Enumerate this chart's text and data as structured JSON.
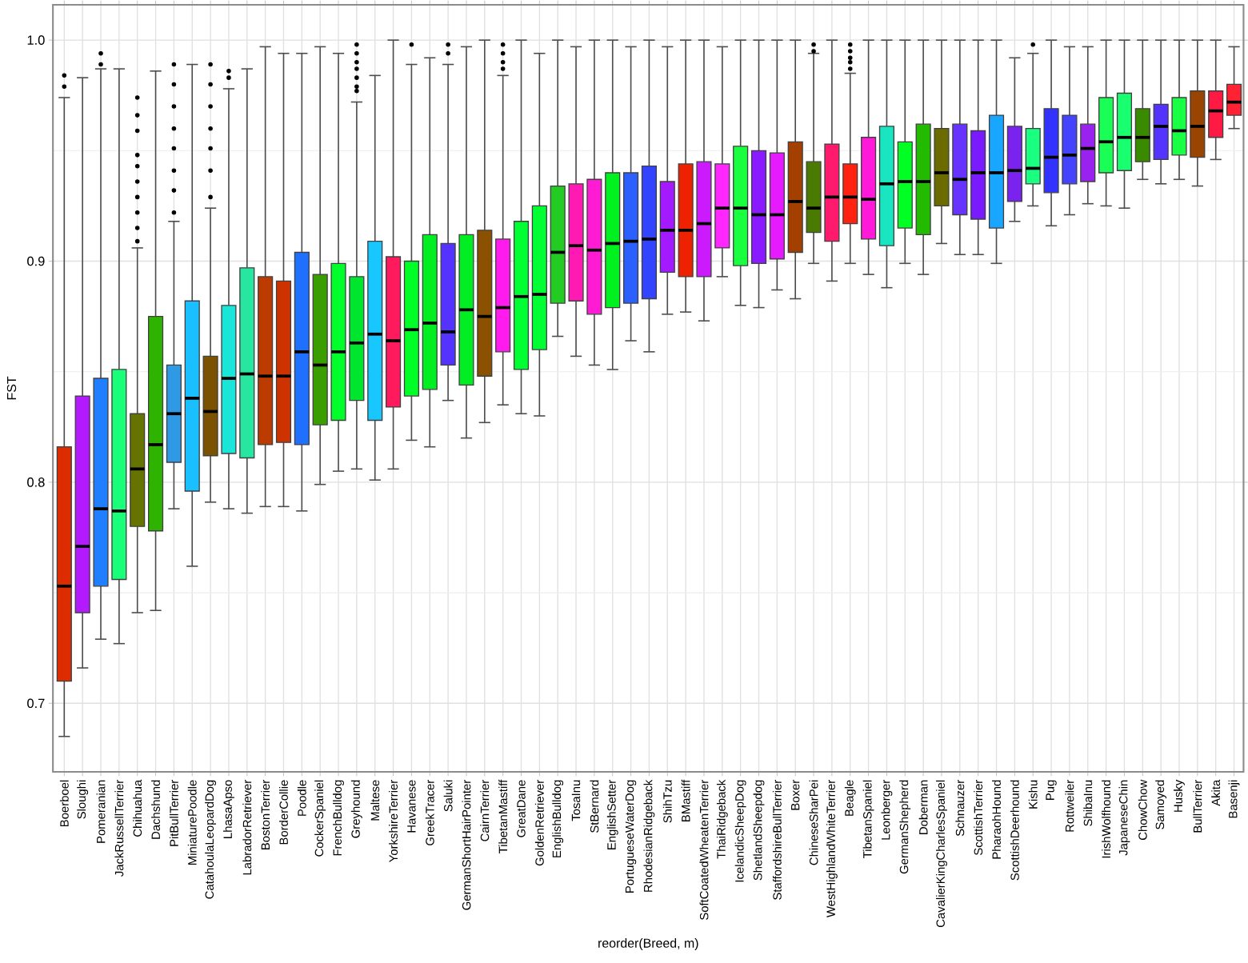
{
  "chart_data": {
    "type": "box",
    "xlabel": "reorder(Breed, m)",
    "ylabel": "FST",
    "categories": [
      "Boerboel",
      "Sloughi",
      "Pomeranian",
      "JackRussellTerrier",
      "Chihuahua",
      "Dachshund",
      "PitBullTerrier",
      "MiniaturePoodle",
      "CatahoulaLeopardDog",
      "LhasaApso",
      "LabradorRetriever",
      "BostonTerrier",
      "BorderCollie",
      "Poodle",
      "CockerSpaniel",
      "FrenchBulldog",
      "Greyhound",
      "Maltese",
      "YorkshireTerrier",
      "Havanese",
      "GreekTracer",
      "Saluki",
      "GermanShortHairPointer",
      "CairnTerrier",
      "TibetanMastiff",
      "GreatDane",
      "GoldenRetriever",
      "EnglishBulldog",
      "TosaInu",
      "StBernard",
      "EnglishSetter",
      "PortugueseWaterDog",
      "RhodesianRidgeback",
      "ShihTzu",
      "BMastiff",
      "SoftCoatedWheatenTerrier",
      "ThaiRidgeback",
      "IcelandicSheepDog",
      "ShetlandSheepdog",
      "StaffordshireBullTerrier",
      "Boxer",
      "ChineseSharPei",
      "WestHighlandWhiteTerrier",
      "Beagle",
      "TibetanSpaniel",
      "Leonberger",
      "GermanShepherd",
      "Doberman",
      "CavalierKingCharlesSpaniel",
      "Schnauzer",
      "ScottishTerrier",
      "PharaohHound",
      "ScottishDeerhound",
      "Kishu",
      "Pug",
      "Rottweiler",
      "ShibaInu",
      "IrishWolfhound",
      "JapaneseChin",
      "ChowChow",
      "Samoyed",
      "Husky",
      "BullTerrier",
      "Akita",
      "Basenji"
    ],
    "colors": [
      "#dd2c00",
      "#b31aff",
      "#1f7fff",
      "#1aff7a",
      "#667300",
      "#2db300",
      "#2e9ae6",
      "#19bfff",
      "#7a5200",
      "#19e6d9",
      "#26e6a0",
      "#bb3b00",
      "#cc3300",
      "#1f70ff",
      "#3a9e00",
      "#00ff2a",
      "#00e62e",
      "#19c7ff",
      "#ff1a5e",
      "#00ff26",
      "#00ee22",
      "#5533ff",
      "#00ee22",
      "#8a5200",
      "#ff1aee",
      "#00ff33",
      "#00ff33",
      "#22cc22",
      "#ff1ab3",
      "#ff1ad4",
      "#00f020",
      "#2b60ff",
      "#3344ff",
      "#a31aff",
      "#ee2200",
      "#cc1aff",
      "#ff26ff",
      "#19ff40",
      "#8a1aff",
      "#e61aff",
      "#a34000",
      "#4a7a00",
      "#ff1a6e",
      "#ff2211",
      "#ff1ad9",
      "#19e6c0",
      "#00ff22",
      "#22bb00",
      "#6b6b00",
      "#6633ff",
      "#7a1aff",
      "#19a6ff",
      "#7a22ee",
      "#19ff80",
      "#3333ff",
      "#4444ff",
      "#9922ee",
      "#19ff55",
      "#19ff70",
      "#3a8a00",
      "#5533ff",
      "#19ff44",
      "#994400",
      "#ff1a44",
      "#ff2233"
    ],
    "boxes": [
      {
        "low": 0.685,
        "q1": 0.71,
        "median": 0.753,
        "q3": 0.816,
        "high": 0.974,
        "outliers": [
          0.984,
          0.979
        ]
      },
      {
        "low": 0.716,
        "q1": 0.741,
        "median": 0.771,
        "q3": 0.839,
        "high": 0.983
      },
      {
        "low": 0.729,
        "q1": 0.753,
        "median": 0.788,
        "q3": 0.847,
        "high": 0.987,
        "outliers": [
          0.994,
          0.989
        ]
      },
      {
        "low": 0.727,
        "q1": 0.756,
        "median": 0.787,
        "q3": 0.851,
        "high": 0.987
      },
      {
        "low": 0.741,
        "q1": 0.78,
        "median": 0.806,
        "q3": 0.831,
        "high": 0.906,
        "outliers": [
          0.974,
          0.966,
          0.959,
          0.948,
          0.943,
          0.936,
          0.929,
          0.922,
          0.915,
          0.909
        ]
      },
      {
        "low": 0.742,
        "q1": 0.778,
        "median": 0.817,
        "q3": 0.875,
        "high": 0.986
      },
      {
        "low": 0.788,
        "q1": 0.809,
        "median": 0.831,
        "q3": 0.853,
        "high": 0.918,
        "outliers": [
          0.989,
          0.98,
          0.97,
          0.96,
          0.951,
          0.941,
          0.932,
          0.922
        ]
      },
      {
        "low": 0.762,
        "q1": 0.796,
        "median": 0.838,
        "q3": 0.882,
        "high": 0.989
      },
      {
        "low": 0.791,
        "q1": 0.812,
        "median": 0.832,
        "q3": 0.857,
        "high": 0.924,
        "outliers": [
          0.989,
          0.98,
          0.97,
          0.96,
          0.951,
          0.941,
          0.929
        ]
      },
      {
        "low": 0.788,
        "q1": 0.813,
        "median": 0.847,
        "q3": 0.88,
        "high": 0.978,
        "outliers": [
          0.986,
          0.983
        ]
      },
      {
        "low": 0.786,
        "q1": 0.811,
        "median": 0.849,
        "q3": 0.897,
        "high": 0.987
      },
      {
        "low": 0.789,
        "q1": 0.817,
        "median": 0.848,
        "q3": 0.893,
        "high": 0.997
      },
      {
        "low": 0.789,
        "q1": 0.818,
        "median": 0.848,
        "q3": 0.891,
        "high": 0.994
      },
      {
        "low": 0.787,
        "q1": 0.817,
        "median": 0.859,
        "q3": 0.904,
        "high": 0.994
      },
      {
        "low": 0.799,
        "q1": 0.826,
        "median": 0.853,
        "q3": 0.894,
        "high": 0.997
      },
      {
        "low": 0.805,
        "q1": 0.828,
        "median": 0.859,
        "q3": 0.899,
        "high": 0.994
      },
      {
        "low": 0.806,
        "q1": 0.837,
        "median": 0.863,
        "q3": 0.893,
        "high": 0.972,
        "outliers": [
          0.998,
          0.994,
          0.99,
          0.987,
          0.983,
          0.979,
          0.977
        ]
      },
      {
        "low": 0.801,
        "q1": 0.828,
        "median": 0.867,
        "q3": 0.909,
        "high": 0.984
      },
      {
        "low": 0.806,
        "q1": 0.834,
        "median": 0.864,
        "q3": 0.902,
        "high": 1.0
      },
      {
        "low": 0.819,
        "q1": 0.839,
        "median": 0.869,
        "q3": 0.9,
        "high": 0.989,
        "outliers": [
          0.998
        ]
      },
      {
        "low": 0.816,
        "q1": 0.842,
        "median": 0.872,
        "q3": 0.912,
        "high": 0.992
      },
      {
        "low": 0.837,
        "q1": 0.853,
        "median": 0.868,
        "q3": 0.908,
        "high": 0.989,
        "outliers": [
          0.998,
          0.994
        ]
      },
      {
        "low": 0.82,
        "q1": 0.844,
        "median": 0.878,
        "q3": 0.912,
        "high": 0.997
      },
      {
        "low": 0.827,
        "q1": 0.848,
        "median": 0.875,
        "q3": 0.914,
        "high": 1.0
      },
      {
        "low": 0.835,
        "q1": 0.859,
        "median": 0.879,
        "q3": 0.91,
        "high": 0.984,
        "outliers": [
          0.998,
          0.994,
          0.99,
          0.987
        ]
      },
      {
        "low": 0.831,
        "q1": 0.851,
        "median": 0.884,
        "q3": 0.918,
        "high": 1.0
      },
      {
        "low": 0.83,
        "q1": 0.86,
        "median": 0.885,
        "q3": 0.925,
        "high": 0.994
      },
      {
        "low": 0.866,
        "q1": 0.881,
        "median": 0.904,
        "q3": 0.934,
        "high": 1.0
      },
      {
        "low": 0.857,
        "q1": 0.882,
        "median": 0.907,
        "q3": 0.935,
        "high": 0.997
      },
      {
        "low": 0.853,
        "q1": 0.876,
        "median": 0.905,
        "q3": 0.937,
        "high": 1.0
      },
      {
        "low": 0.851,
        "q1": 0.879,
        "median": 0.908,
        "q3": 0.94,
        "high": 1.0
      },
      {
        "low": 0.864,
        "q1": 0.881,
        "median": 0.909,
        "q3": 0.94,
        "high": 0.997
      },
      {
        "low": 0.859,
        "q1": 0.883,
        "median": 0.91,
        "q3": 0.943,
        "high": 1.0
      },
      {
        "low": 0.876,
        "q1": 0.895,
        "median": 0.914,
        "q3": 0.936,
        "high": 0.997
      },
      {
        "low": 0.877,
        "q1": 0.893,
        "median": 0.914,
        "q3": 0.944,
        "high": 1.0
      },
      {
        "low": 0.873,
        "q1": 0.893,
        "median": 0.917,
        "q3": 0.945,
        "high": 1.0
      },
      {
        "low": 0.893,
        "q1": 0.906,
        "median": 0.924,
        "q3": 0.944,
        "high": 0.997
      },
      {
        "low": 0.88,
        "q1": 0.898,
        "median": 0.924,
        "q3": 0.952,
        "high": 1.0
      },
      {
        "low": 0.879,
        "q1": 0.899,
        "median": 0.921,
        "q3": 0.95,
        "high": 1.0
      },
      {
        "low": 0.887,
        "q1": 0.901,
        "median": 0.921,
        "q3": 0.949,
        "high": 1.0
      },
      {
        "low": 0.883,
        "q1": 0.904,
        "median": 0.927,
        "q3": 0.954,
        "high": 1.0
      },
      {
        "low": 0.899,
        "q1": 0.913,
        "median": 0.924,
        "q3": 0.945,
        "high": 0.994,
        "outliers": [
          0.998,
          0.995
        ]
      },
      {
        "low": 0.891,
        "q1": 0.909,
        "median": 0.929,
        "q3": 0.953,
        "high": 1.0
      },
      {
        "low": 0.899,
        "q1": 0.917,
        "median": 0.929,
        "q3": 0.944,
        "high": 0.985,
        "outliers": [
          0.998,
          0.995,
          0.992,
          0.99,
          0.987
        ]
      },
      {
        "low": 0.894,
        "q1": 0.91,
        "median": 0.928,
        "q3": 0.956,
        "high": 1.0
      },
      {
        "low": 0.888,
        "q1": 0.907,
        "median": 0.935,
        "q3": 0.961,
        "high": 1.0
      },
      {
        "low": 0.899,
        "q1": 0.915,
        "median": 0.936,
        "q3": 0.954,
        "high": 1.0
      },
      {
        "low": 0.894,
        "q1": 0.912,
        "median": 0.936,
        "q3": 0.962,
        "high": 1.0
      },
      {
        "low": 0.908,
        "q1": 0.925,
        "median": 0.94,
        "q3": 0.96,
        "high": 1.0
      },
      {
        "low": 0.903,
        "q1": 0.921,
        "median": 0.937,
        "q3": 0.962,
        "high": 1.0
      },
      {
        "low": 0.903,
        "q1": 0.919,
        "median": 0.94,
        "q3": 0.959,
        "high": 1.0
      },
      {
        "low": 0.899,
        "q1": 0.915,
        "median": 0.94,
        "q3": 0.966,
        "high": 1.0
      },
      {
        "low": 0.918,
        "q1": 0.927,
        "median": 0.941,
        "q3": 0.961,
        "high": 0.992
      },
      {
        "low": 0.925,
        "q1": 0.935,
        "median": 0.942,
        "q3": 0.96,
        "high": 0.994,
        "outliers": [
          0.998
        ]
      },
      {
        "low": 0.916,
        "q1": 0.931,
        "median": 0.947,
        "q3": 0.969,
        "high": 1.0
      },
      {
        "low": 0.921,
        "q1": 0.935,
        "median": 0.948,
        "q3": 0.966,
        "high": 0.997
      },
      {
        "low": 0.926,
        "q1": 0.936,
        "median": 0.951,
        "q3": 0.962,
        "high": 0.997
      },
      {
        "low": 0.925,
        "q1": 0.94,
        "median": 0.954,
        "q3": 0.974,
        "high": 1.0
      },
      {
        "low": 0.924,
        "q1": 0.941,
        "median": 0.956,
        "q3": 0.976,
        "high": 1.0
      },
      {
        "low": 0.937,
        "q1": 0.945,
        "median": 0.956,
        "q3": 0.969,
        "high": 1.0
      },
      {
        "low": 0.935,
        "q1": 0.946,
        "median": 0.961,
        "q3": 0.971,
        "high": 1.0
      },
      {
        "low": 0.937,
        "q1": 0.948,
        "median": 0.959,
        "q3": 0.974,
        "high": 1.0
      },
      {
        "low": 0.934,
        "q1": 0.947,
        "median": 0.961,
        "q3": 0.977,
        "high": 1.0
      },
      {
        "low": 0.946,
        "q1": 0.956,
        "median": 0.968,
        "q3": 0.977,
        "high": 1.0
      },
      {
        "low": 0.96,
        "q1": 0.966,
        "median": 0.972,
        "q3": 0.98,
        "high": 0.997
      }
    ],
    "ylim": [
      0.669,
      1.016
    ],
    "yticks": [
      {
        "value": 0.7,
        "label": "0.7"
      },
      {
        "value": 0.8,
        "label": "0.8"
      },
      {
        "value": 0.9,
        "label": "0.9"
      },
      {
        "value": 1.0,
        "label": "1.0"
      }
    ],
    "grid": true
  }
}
